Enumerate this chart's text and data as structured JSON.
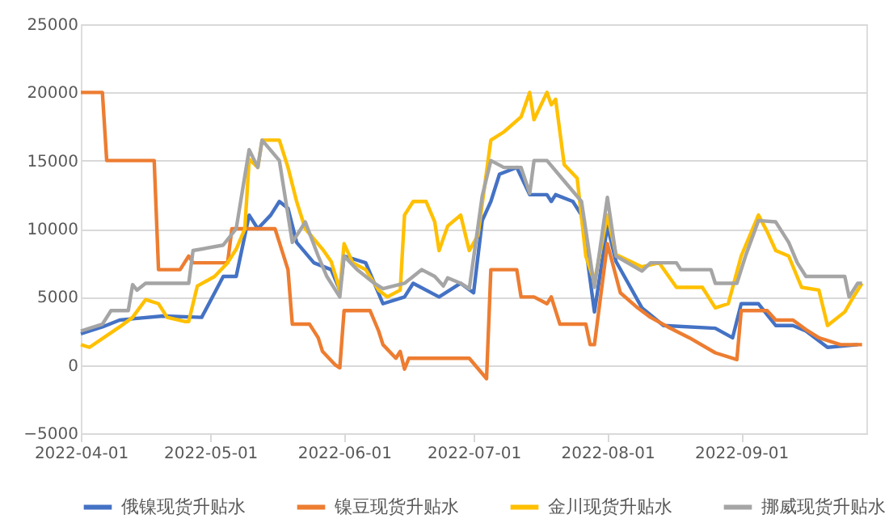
{
  "chart_data": {
    "type": "line",
    "ylim": [
      -5000,
      25000
    ],
    "yticks": [
      -5000,
      0,
      5000,
      10000,
      15000,
      20000,
      25000
    ],
    "xlim": [
      "2022-04-01",
      "2022-09-30"
    ],
    "xticks": [
      "2022-04-01",
      "2022-05-01",
      "2022-06-01",
      "2022-07-01",
      "2022-08-01",
      "2022-09-01"
    ],
    "grid": "y",
    "legend": "bottom",
    "line_style": "solid",
    "marker": "none",
    "series": [
      {
        "name": "俄镍现货升贴水",
        "color": "#4472c4",
        "x": [
          "2022-04-01",
          "2022-04-06",
          "2022-04-10",
          "2022-04-13",
          "2022-04-20",
          "2022-04-29",
          "2022-05-04",
          "2022-05-07",
          "2022-05-10",
          "2022-05-12",
          "2022-05-15",
          "2022-05-17",
          "2022-05-19",
          "2022-05-21",
          "2022-05-25",
          "2022-05-29",
          "2022-05-31",
          "2022-06-01",
          "2022-06-06",
          "2022-06-08",
          "2022-06-10",
          "2022-06-15",
          "2022-06-17",
          "2022-06-23",
          "2022-06-28",
          "2022-07-01",
          "2022-07-03",
          "2022-07-05",
          "2022-07-07",
          "2022-07-11",
          "2022-07-14",
          "2022-07-18",
          "2022-07-19",
          "2022-07-20",
          "2022-07-24",
          "2022-07-26",
          "2022-07-29",
          "2022-08-01",
          "2022-08-03",
          "2022-08-09",
          "2022-08-14",
          "2022-08-26",
          "2022-08-30",
          "2022-09-01",
          "2022-09-05",
          "2022-09-09",
          "2022-09-13",
          "2022-09-16",
          "2022-09-21",
          "2022-09-28"
        ],
        "values": [
          2300,
          2800,
          3300,
          3400,
          3600,
          3500,
          6500,
          6500,
          11000,
          10000,
          11000,
          12000,
          11500,
          9000,
          7500,
          7000,
          5500,
          8000,
          7500,
          6000,
          4500,
          5000,
          6000,
          5000,
          6000,
          5300,
          10600,
          12000,
          14000,
          14500,
          12500,
          12500,
          12000,
          12500,
          12000,
          11000,
          3900,
          10200,
          7600,
          4200,
          2900,
          2700,
          2000,
          4500,
          4500,
          2900,
          2900,
          2500,
          1300,
          1500
        ]
      },
      {
        "name": "镍豆现货升贴水",
        "color": "#ed7d31",
        "x": [
          "2022-04-01",
          "2022-04-06",
          "2022-04-07",
          "2022-04-18",
          "2022-04-19",
          "2022-04-24",
          "2022-04-26",
          "2022-04-27",
          "2022-05-05",
          "2022-05-06",
          "2022-05-16",
          "2022-05-17",
          "2022-05-19",
          "2022-05-20",
          "2022-05-24",
          "2022-05-26",
          "2022-05-27",
          "2022-05-30",
          "2022-05-31",
          "2022-06-01",
          "2022-06-07",
          "2022-06-09",
          "2022-06-10",
          "2022-06-13",
          "2022-06-14",
          "2022-06-15",
          "2022-06-16",
          "2022-06-30",
          "2022-07-04",
          "2022-07-05",
          "2022-07-11",
          "2022-07-12",
          "2022-07-15",
          "2022-07-18",
          "2022-07-19",
          "2022-07-21",
          "2022-07-27",
          "2022-07-28",
          "2022-07-29",
          "2022-08-01",
          "2022-08-04",
          "2022-08-08",
          "2022-08-11",
          "2022-08-15",
          "2022-08-20",
          "2022-08-26",
          "2022-08-31",
          "2022-09-01",
          "2022-09-07",
          "2022-09-09",
          "2022-09-13",
          "2022-09-16",
          "2022-09-19",
          "2022-09-24",
          "2022-09-29"
        ],
        "values": [
          20000,
          20000,
          15000,
          15000,
          7000,
          7000,
          8000,
          7500,
          7500,
          10000,
          10000,
          9000,
          7000,
          3000,
          3000,
          2000,
          1000,
          0,
          -200,
          4000,
          4000,
          2500,
          1500,
          500,
          1000,
          -300,
          500,
          500,
          -1000,
          7000,
          7000,
          5000,
          5000,
          4500,
          5000,
          3000,
          3000,
          1500,
          1500,
          8900,
          5300,
          4200,
          3500,
          2800,
          2000,
          900,
          400,
          4000,
          4000,
          3300,
          3300,
          2600,
          2000,
          1500,
          1500
        ]
      },
      {
        "name": "金川现货升贴水",
        "color": "#ffc000",
        "x": [
          "2022-04-01",
          "2022-04-03",
          "2022-04-10",
          "2022-04-13",
          "2022-04-16",
          "2022-04-19",
          "2022-04-21",
          "2022-04-25",
          "2022-04-26",
          "2022-04-28",
          "2022-05-02",
          "2022-05-05",
          "2022-05-07",
          "2022-05-09",
          "2022-05-10",
          "2022-05-12",
          "2022-05-13",
          "2022-05-17",
          "2022-05-19",
          "2022-05-21",
          "2022-05-23",
          "2022-05-27",
          "2022-05-29",
          "2022-05-31",
          "2022-06-01",
          "2022-06-03",
          "2022-06-06",
          "2022-06-09",
          "2022-06-11",
          "2022-06-14",
          "2022-06-15",
          "2022-06-17",
          "2022-06-20",
          "2022-06-22",
          "2022-06-23",
          "2022-06-25",
          "2022-06-28",
          "2022-06-30",
          "2022-07-02",
          "2022-07-05",
          "2022-07-08",
          "2022-07-12",
          "2022-07-14",
          "2022-07-15",
          "2022-07-18",
          "2022-07-19",
          "2022-07-20",
          "2022-07-22",
          "2022-07-25",
          "2022-07-27",
          "2022-07-29",
          "2022-08-01",
          "2022-08-03",
          "2022-08-09",
          "2022-08-13",
          "2022-08-17",
          "2022-08-23",
          "2022-08-26",
          "2022-08-29",
          "2022-09-01",
          "2022-09-05",
          "2022-09-07",
          "2022-09-09",
          "2022-09-12",
          "2022-09-15",
          "2022-09-19",
          "2022-09-21",
          "2022-09-25",
          "2022-09-27",
          "2022-09-29"
        ],
        "values": [
          1500,
          1300,
          2800,
          3500,
          4800,
          4500,
          3500,
          3200,
          3200,
          5800,
          6500,
          7500,
          8500,
          10000,
          15100,
          14500,
          16500,
          16500,
          14500,
          12000,
          10000,
          8500,
          7600,
          5500,
          8900,
          7500,
          7000,
          5500,
          5000,
          5500,
          11000,
          12000,
          12000,
          10500,
          8400,
          10200,
          11000,
          8400,
          9500,
          16500,
          17100,
          18200,
          20000,
          18000,
          20000,
          19100,
          19500,
          14700,
          13700,
          8000,
          6100,
          11000,
          8100,
          7200,
          7500,
          5700,
          5700,
          4200,
          4500,
          8000,
          11000,
          9800,
          8400,
          8000,
          5700,
          5500,
          2900,
          3900,
          5000,
          6000
        ]
      },
      {
        "name": "挪威现货升贴水",
        "color": "#a5a5a5",
        "x": [
          "2022-04-01",
          "2022-04-06",
          "2022-04-08",
          "2022-04-12",
          "2022-04-13",
          "2022-04-14",
          "2022-04-16",
          "2022-04-26",
          "2022-04-27",
          "2022-05-04",
          "2022-05-07",
          "2022-05-10",
          "2022-05-12",
          "2022-05-13",
          "2022-05-17",
          "2022-05-20",
          "2022-05-23",
          "2022-05-26",
          "2022-05-28",
          "2022-05-31",
          "2022-06-01",
          "2022-06-04",
          "2022-06-08",
          "2022-06-10",
          "2022-06-15",
          "2022-06-19",
          "2022-06-22",
          "2022-06-24",
          "2022-06-25",
          "2022-06-28",
          "2022-06-30",
          "2022-07-03",
          "2022-07-05",
          "2022-07-08",
          "2022-07-12",
          "2022-07-14",
          "2022-07-15",
          "2022-07-18",
          "2022-07-22",
          "2022-07-26",
          "2022-07-29",
          "2022-08-01",
          "2022-08-03",
          "2022-08-09",
          "2022-08-11",
          "2022-08-17",
          "2022-08-18",
          "2022-08-25",
          "2022-08-26",
          "2022-08-31",
          "2022-09-02",
          "2022-09-05",
          "2022-09-09",
          "2022-09-12",
          "2022-09-14",
          "2022-09-16",
          "2022-09-25",
          "2022-09-26",
          "2022-09-28",
          "2022-09-29"
        ],
        "values": [
          2500,
          3000,
          4000,
          4000,
          5900,
          5500,
          6000,
          6000,
          8400,
          8800,
          10000,
          15800,
          14500,
          16500,
          15000,
          9000,
          10500,
          8000,
          6500,
          5000,
          8000,
          7000,
          6000,
          5600,
          6000,
          7000,
          6500,
          5800,
          6400,
          6000,
          5600,
          12400,
          15000,
          14500,
          14500,
          12600,
          15000,
          15000,
          13500,
          12000,
          5700,
          12300,
          8000,
          6900,
          7500,
          7500,
          7000,
          7000,
          6000,
          6000,
          8000,
          10600,
          10500,
          9000,
          7500,
          6500,
          6500,
          5000,
          6000,
          6000
        ]
      }
    ]
  }
}
